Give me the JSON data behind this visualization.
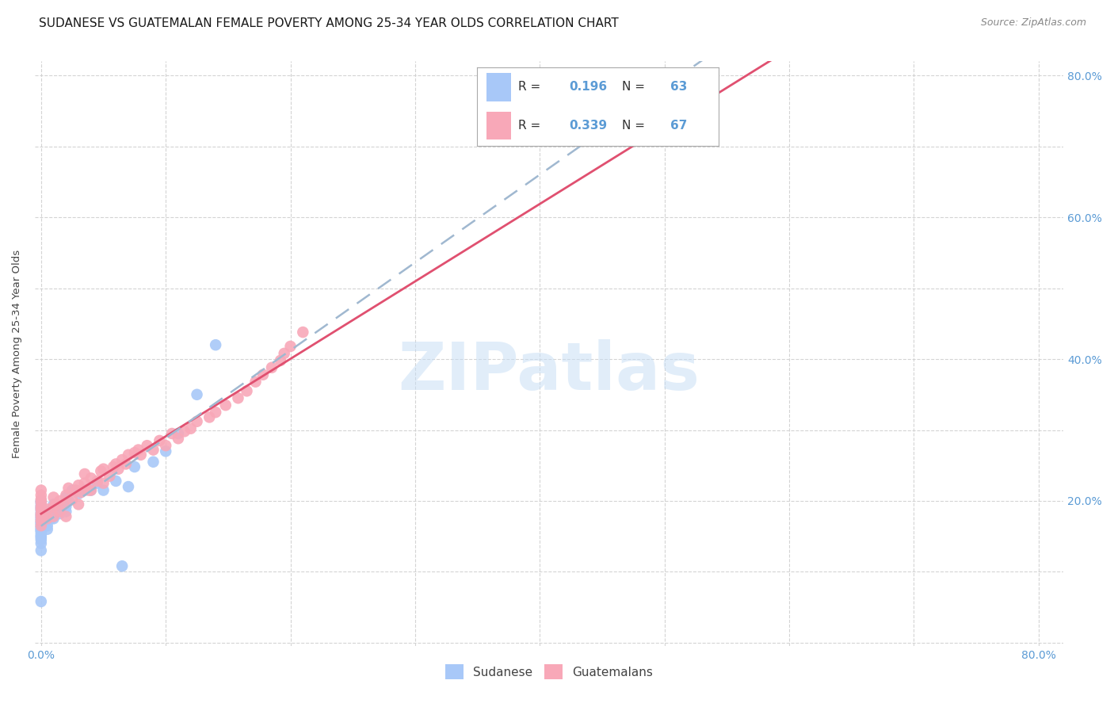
{
  "title": "SUDANESE VS GUATEMALAN FEMALE POVERTY AMONG 25-34 YEAR OLDS CORRELATION CHART",
  "source": "Source: ZipAtlas.com",
  "tick_color": "#5b9bd5",
  "ylabel": "Female Poverty Among 25-34 Year Olds",
  "sudanese_color": "#a8c8f8",
  "guatemalan_color": "#f8a8b8",
  "sudanese_line_color": "#3a5fa0",
  "guatemalan_line_color": "#e05070",
  "dashed_line_color": "#a0b8d0",
  "background_color": "#ffffff",
  "grid_color": "#d0d0d0",
  "title_fontsize": 11,
  "axis_label_fontsize": 9.5,
  "tick_fontsize": 10,
  "watermark": "ZIPatlas",
  "sudanese_x": [
    0.0,
    0.0,
    0.0,
    0.0,
    0.0,
    0.0,
    0.0,
    0.0,
    0.0,
    0.0,
    0.0,
    0.0,
    0.0,
    0.0,
    0.0,
    0.0,
    0.0,
    0.0,
    0.0,
    0.0,
    0.0,
    0.0,
    0.0,
    0.0,
    0.0,
    0.0,
    0.0,
    0.0,
    0.0,
    0.0,
    0.005,
    0.005,
    0.005,
    0.005,
    0.005,
    0.008,
    0.01,
    0.01,
    0.01,
    0.01,
    0.012,
    0.015,
    0.015,
    0.018,
    0.02,
    0.02,
    0.02,
    0.022,
    0.025,
    0.03,
    0.035,
    0.04,
    0.045,
    0.05,
    0.06,
    0.065,
    0.07,
    0.075,
    0.09,
    0.1,
    0.11,
    0.125,
    0.14
  ],
  "sudanese_y": [
    0.13,
    0.14,
    0.145,
    0.15,
    0.155,
    0.158,
    0.16,
    0.162,
    0.165,
    0.168,
    0.17,
    0.172,
    0.175,
    0.178,
    0.18,
    0.182,
    0.185,
    0.188,
    0.19,
    0.192,
    0.195,
    0.198,
    0.2,
    0.148,
    0.152,
    0.158,
    0.163,
    0.168,
    0.175,
    0.058,
    0.16,
    0.165,
    0.172,
    0.178,
    0.185,
    0.175,
    0.175,
    0.18,
    0.19,
    0.195,
    0.185,
    0.182,
    0.192,
    0.188,
    0.185,
    0.192,
    0.205,
    0.2,
    0.215,
    0.21,
    0.215,
    0.215,
    0.225,
    0.215,
    0.228,
    0.108,
    0.22,
    0.248,
    0.255,
    0.27,
    0.295,
    0.35,
    0.42
  ],
  "guatemalan_x": [
    0.0,
    0.0,
    0.0,
    0.0,
    0.0,
    0.0,
    0.0,
    0.0,
    0.0,
    0.0,
    0.005,
    0.005,
    0.01,
    0.01,
    0.01,
    0.012,
    0.015,
    0.015,
    0.018,
    0.02,
    0.02,
    0.022,
    0.025,
    0.028,
    0.03,
    0.03,
    0.032,
    0.035,
    0.035,
    0.038,
    0.04,
    0.04,
    0.045,
    0.048,
    0.05,
    0.05,
    0.055,
    0.058,
    0.06,
    0.062,
    0.065,
    0.068,
    0.07,
    0.075,
    0.078,
    0.08,
    0.085,
    0.09,
    0.095,
    0.1,
    0.105,
    0.11,
    0.115,
    0.12,
    0.125,
    0.135,
    0.14,
    0.148,
    0.158,
    0.165,
    0.172,
    0.178,
    0.185,
    0.192,
    0.195,
    0.2,
    0.21
  ],
  "guatemalan_y": [
    0.165,
    0.172,
    0.178,
    0.182,
    0.188,
    0.192,
    0.198,
    0.202,
    0.208,
    0.215,
    0.175,
    0.188,
    0.178,
    0.192,
    0.205,
    0.195,
    0.185,
    0.2,
    0.195,
    0.178,
    0.208,
    0.218,
    0.202,
    0.215,
    0.195,
    0.222,
    0.212,
    0.225,
    0.238,
    0.215,
    0.215,
    0.232,
    0.228,
    0.242,
    0.225,
    0.245,
    0.235,
    0.248,
    0.252,
    0.245,
    0.258,
    0.252,
    0.265,
    0.268,
    0.272,
    0.265,
    0.278,
    0.272,
    0.285,
    0.278,
    0.295,
    0.288,
    0.298,
    0.302,
    0.312,
    0.318,
    0.325,
    0.335,
    0.345,
    0.355,
    0.368,
    0.378,
    0.388,
    0.398,
    0.408,
    0.418,
    0.438
  ],
  "sudanese_r": 0.196,
  "sudanese_n": 63,
  "guatemalan_r": 0.339,
  "guatemalan_n": 67,
  "xlim": [
    -0.005,
    0.82
  ],
  "ylim": [
    -0.005,
    0.82
  ],
  "x_ticks_show": [
    0.0,
    0.8
  ],
  "y_ticks_show": [
    0.2,
    0.4,
    0.6,
    0.8
  ],
  "x_tick_labels_show": [
    "0.0%",
    "80.0%"
  ],
  "y_tick_labels_show": [
    "20.0%",
    "40.0%",
    "60.0%",
    "80.0%"
  ]
}
